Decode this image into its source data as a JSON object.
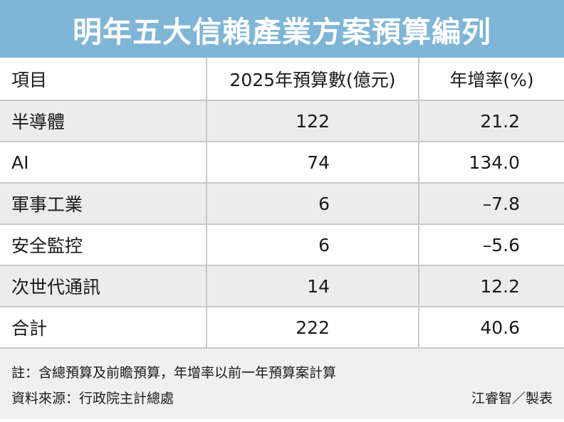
{
  "title": "明年五大信賴產業方案預算編列",
  "chart_data": {
    "type": "table",
    "columns": [
      "項目",
      "2025年預算數(億元)",
      "年增率(%)"
    ],
    "rows": [
      {
        "item": "半導體",
        "budget": "122",
        "growth": "21.2"
      },
      {
        "item": "AI",
        "budget": "74",
        "growth": "134.0"
      },
      {
        "item": "軍事工業",
        "budget": "6",
        "growth": "–7.8"
      },
      {
        "item": "安全監控",
        "budget": "6",
        "growth": "–5.6"
      },
      {
        "item": "次世代通訊",
        "budget": "14",
        "growth": "12.2"
      },
      {
        "item": "合計",
        "budget": "222",
        "growth": "40.6"
      }
    ]
  },
  "footer": {
    "note": "註：含總預算及前瞻預算，年增率以前一年預算案計算",
    "source": "資料來源：行政院主計總處",
    "credit": "江睿智／製表"
  }
}
